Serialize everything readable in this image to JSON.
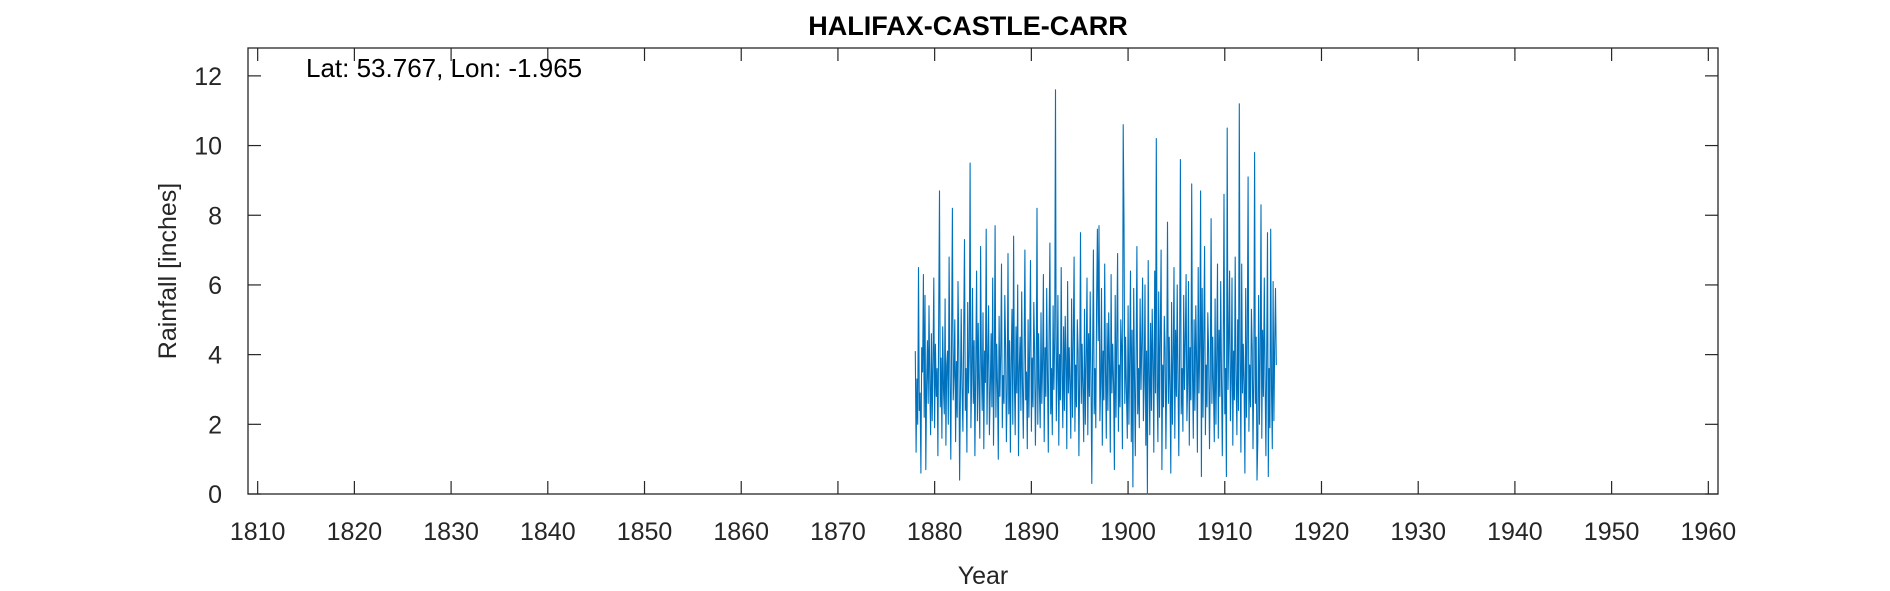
{
  "chart_data": {
    "type": "line",
    "title": "HALIFAX-CASTLE-CARR",
    "annotation": "Lat: 53.767, Lon: -1.965",
    "xlabel": "Year",
    "ylabel": "Rainfall [inches]",
    "xlim": [
      1809,
      1961
    ],
    "ylim": [
      0,
      12.8
    ],
    "xticks": [
      1810,
      1820,
      1830,
      1840,
      1850,
      1860,
      1870,
      1880,
      1890,
      1900,
      1910,
      1920,
      1930,
      1940,
      1950,
      1960
    ],
    "yticks": [
      0,
      2,
      4,
      6,
      8,
      10,
      12
    ],
    "grid": false,
    "legend": "none",
    "series": [
      {
        "color": "#0072BD",
        "x_start": 1878.0,
        "x_step_years": 0.08333,
        "resolution": "monthly",
        "values": [
          4.1,
          1.2,
          3.3,
          2.0,
          6.5,
          2.4,
          2.9,
          0.6,
          4.2,
          3.5,
          6.3,
          2.2,
          5.7,
          0.7,
          3.1,
          4.4,
          2.6,
          5.4,
          3.2,
          1.7,
          4.6,
          2.1,
          3.8,
          6.2,
          1.9,
          4.3,
          2.8,
          3.6,
          1.1,
          5.1,
          8.7,
          2.5,
          3.9,
          1.6,
          4.8,
          3.0,
          2.3,
          5.6,
          1.4,
          3.7,
          4.1,
          2.0,
          6.8,
          3.3,
          1.0,
          4.5,
          8.2,
          2.7,
          3.4,
          5.0,
          1.5,
          3.8,
          2.2,
          6.1,
          4.2,
          0.4,
          2.9,
          5.3,
          3.1,
          1.8,
          4.7,
          7.3,
          2.4,
          3.6,
          1.2,
          5.5,
          2.9,
          4.0,
          9.5,
          1.9,
          3.3,
          5.9,
          2.6,
          4.4,
          1.1,
          3.5,
          6.4,
          2.1,
          4.9,
          3.0,
          1.6,
          7.1,
          3.7,
          2.4,
          5.2,
          1.3,
          4.1,
          3.2,
          7.6,
          2.0,
          3.9,
          5.4,
          1.7,
          3.0,
          4.6,
          2.5,
          6.2,
          1.4,
          3.6,
          7.7,
          2.2,
          4.3,
          3.1,
          1.0,
          5.1,
          2.8,
          4.0,
          6.6,
          1.9,
          3.4,
          2.6,
          5.7,
          4.2,
          1.5,
          3.0,
          6.9,
          2.3,
          4.4,
          1.2,
          3.8,
          5.3,
          2.0,
          7.4,
          3.3,
          1.7,
          4.8,
          2.9,
          6.0,
          1.1,
          3.6,
          4.5,
          2.4,
          5.8,
          3.1,
          1.6,
          4.0,
          7.0,
          2.7,
          3.5,
          1.3,
          5.0,
          2.2,
          4.3,
          6.7,
          1.8,
          3.9,
          2.5,
          5.5,
          4.1,
          1.4,
          3.2,
          8.2,
          2.0,
          4.6,
          3.0,
          1.9,
          5.2,
          2.6,
          3.8,
          6.3,
          1.5,
          4.2,
          2.8,
          5.9,
          3.4,
          1.2,
          4.7,
          7.2,
          2.3,
          3.6,
          1.7,
          5.4,
          3.0,
          4.4,
          11.6,
          2.1,
          3.3,
          5.7,
          1.4,
          4.0,
          2.7,
          6.5,
          3.5,
          1.9,
          4.8,
          2.4,
          5.1,
          3.8,
          1.3,
          6.1,
          2.9,
          4.2,
          3.1,
          1.6,
          5.6,
          2.2,
          4.5,
          6.8,
          1.8,
          3.7,
          2.5,
          5.0,
          4.1,
          1.1,
          3.4,
          7.5,
          2.6,
          4.3,
          3.0,
          1.5,
          5.3,
          2.0,
          3.9,
          6.2,
          1.7,
          4.6,
          2.8,
          5.8,
          3.3,
          0.3,
          4.0,
          7.0,
          2.3,
          3.6,
          1.9,
          5.5,
          7.6,
          4.4,
          7.7,
          2.1,
          3.2,
          5.9,
          1.4,
          4.1,
          2.7,
          6.6,
          3.5,
          1.6,
          4.9,
          2.4,
          5.2,
          3.8,
          1.2,
          6.3,
          2.9,
          4.3,
          3.1,
          0.7,
          5.7,
          2.2,
          4.6,
          6.9,
          1.8,
          3.7,
          2.5,
          5.0,
          4.2,
          1.3,
          10.6,
          7.8,
          2.6,
          4.5,
          3.0,
          1.6,
          5.4,
          2.0,
          3.9,
          6.4,
          1.5,
          4.7,
          0.2,
          5.9,
          3.3,
          1.1,
          4.0,
          7.1,
          2.3,
          3.6,
          1.9,
          5.6,
          3.0,
          4.4,
          6.2,
          2.1,
          3.2,
          6.0,
          1.4,
          4.1,
          0.0,
          6.7,
          3.5,
          1.7,
          4.9,
          2.4,
          5.3,
          3.8,
          1.2,
          6.4,
          2.9,
          10.2,
          3.1,
          1.5,
          5.8,
          2.2,
          4.6,
          7.0,
          0.7,
          3.7,
          2.5,
          5.1,
          4.2,
          1.3,
          3.4,
          7.8,
          2.6,
          4.5,
          3.0,
          0.6,
          5.5,
          2.0,
          3.9,
          6.5,
          1.6,
          4.7,
          2.8,
          6.0,
          3.3,
          1.1,
          4.1,
          9.6,
          2.3,
          3.6,
          1.8,
          5.7,
          3.0,
          4.4,
          6.3,
          2.1,
          3.2,
          6.1,
          1.4,
          4.2,
          2.7,
          8.9,
          3.5,
          1.6,
          5.0,
          2.4,
          5.4,
          3.8,
          1.2,
          6.5,
          2.9,
          4.3,
          8.7,
          0.5,
          5.9,
          2.2,
          4.6,
          7.1,
          1.7,
          3.7,
          2.5,
          5.2,
          4.1,
          1.3,
          3.4,
          7.9,
          2.6,
          4.5,
          3.0,
          1.5,
          5.6,
          2.0,
          3.9,
          6.6,
          1.6,
          4.7,
          2.8,
          6.1,
          3.3,
          1.1,
          4.0,
          8.6,
          2.3,
          3.6,
          0.5,
          10.5,
          3.0,
          4.4,
          6.4,
          2.1,
          3.2,
          6.2,
          1.4,
          4.1,
          2.7,
          6.8,
          3.5,
          1.7,
          5.0,
          2.4,
          11.2,
          3.8,
          1.2,
          6.6,
          2.9,
          4.3,
          3.1,
          0.6,
          5.9,
          2.2,
          4.6,
          9.1,
          1.8,
          3.7,
          2.5,
          5.3,
          4.2,
          1.3,
          3.4,
          9.8,
          2.6,
          4.5,
          0.4,
          1.5,
          5.7,
          2.0,
          3.9,
          8.3,
          1.6,
          4.7,
          2.8,
          6.2,
          3.3,
          1.1,
          4.0,
          7.5,
          0.5,
          3.6,
          1.9,
          7.6,
          3.0,
          1.3,
          6.1,
          2.1,
          4.3,
          5.9,
          3.7
        ]
      }
    ]
  }
}
